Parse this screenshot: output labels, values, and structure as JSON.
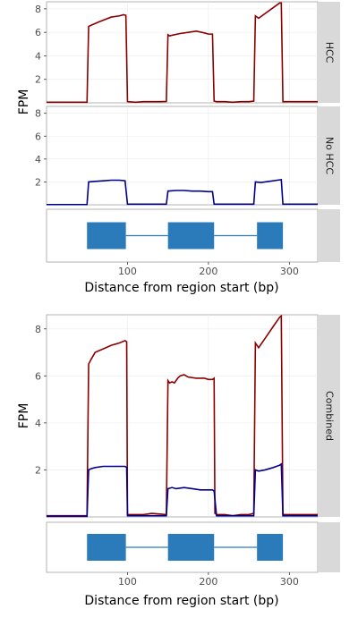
{
  "figure": {
    "top": {
      "ylabel": "FPM",
      "xlabel": "Distance from region start (bp)",
      "strips": [
        "HCC",
        "No HCC"
      ],
      "x_ticks": [
        "100",
        "200",
        "300"
      ],
      "y_ticks": [
        "2",
        "4",
        "6",
        "8"
      ]
    },
    "bottom": {
      "ylabel": "FPM",
      "xlabel": "Distance from region start (bp)",
      "strip": "Combined",
      "x_ticks": [
        "100",
        "200",
        "300"
      ],
      "y_ticks": [
        "2",
        "4",
        "6",
        "8"
      ]
    }
  },
  "colors": {
    "hcc": "#8b0000",
    "no_hcc": "#00008b",
    "exon": "#2b7bba",
    "strip_bg": "#d9d9d9",
    "panel_border": "#b3b3b3"
  },
  "chart_data": [
    {
      "panel": "HCC",
      "type": "line",
      "xlim": [
        0,
        335
      ],
      "ylim": [
        0,
        8.6
      ],
      "series": [
        {
          "name": "HCC",
          "color": "#8b0000",
          "x": [
            0,
            50,
            52,
            55,
            65,
            80,
            90,
            95,
            98,
            100,
            110,
            120,
            130,
            140,
            148,
            150,
            152,
            155,
            165,
            175,
            185,
            195,
            200,
            205,
            207,
            210,
            220,
            230,
            240,
            250,
            256,
            258,
            262,
            270,
            280,
            288,
            290,
            292,
            300,
            320,
            335
          ],
          "y": [
            0.05,
            0.05,
            6.5,
            6.6,
            6.9,
            7.3,
            7.4,
            7.5,
            7.45,
            0.1,
            0.05,
            0.1,
            0.1,
            0.1,
            0.12,
            5.8,
            5.7,
            5.75,
            5.9,
            6.0,
            6.1,
            5.95,
            5.85,
            5.85,
            0.15,
            0.1,
            0.1,
            0.05,
            0.1,
            0.1,
            0.15,
            7.4,
            7.2,
            7.6,
            8.1,
            8.5,
            8.5,
            0.1,
            0.1,
            0.1,
            0.1
          ]
        }
      ]
    },
    {
      "panel": "No HCC",
      "type": "line",
      "xlim": [
        0,
        335
      ],
      "ylim": [
        0,
        8.6
      ],
      "series": [
        {
          "name": "No HCC",
          "color": "#00008b",
          "x": [
            0,
            50,
            52,
            60,
            70,
            80,
            90,
            97,
            100,
            110,
            120,
            130,
            140,
            148,
            150,
            160,
            170,
            180,
            190,
            200,
            205,
            207,
            210,
            220,
            230,
            240,
            250,
            256,
            258,
            265,
            275,
            285,
            290,
            292,
            300,
            320,
            335
          ],
          "y": [
            0.02,
            0.02,
            2.0,
            2.05,
            2.1,
            2.15,
            2.15,
            2.1,
            0.05,
            0.05,
            0.05,
            0.05,
            0.05,
            0.05,
            1.2,
            1.25,
            1.25,
            1.2,
            1.2,
            1.15,
            1.15,
            0.05,
            0.05,
            0.05,
            0.05,
            0.05,
            0.05,
            0.05,
            2.0,
            1.95,
            2.05,
            2.15,
            2.2,
            0.05,
            0.05,
            0.05,
            0.05
          ]
        }
      ]
    },
    {
      "panel": "Combined",
      "type": "line",
      "xlim": [
        0,
        335
      ],
      "ylim": [
        0,
        8.6
      ],
      "series": [
        {
          "name": "HCC",
          "color": "#8b0000",
          "x": [
            0,
            50,
            52,
            55,
            60,
            70,
            80,
            90,
            97,
            99,
            100,
            110,
            120,
            130,
            140,
            148,
            150,
            152,
            155,
            158,
            162,
            165,
            170,
            175,
            185,
            195,
            200,
            205,
            207,
            208,
            210,
            220,
            230,
            240,
            250,
            256,
            258,
            262,
            270,
            280,
            288,
            290,
            292,
            300,
            320,
            335
          ],
          "y": [
            0.05,
            0.05,
            6.5,
            6.7,
            7.0,
            7.15,
            7.3,
            7.4,
            7.5,
            7.45,
            0.1,
            0.1,
            0.1,
            0.15,
            0.12,
            0.1,
            5.8,
            5.7,
            5.75,
            5.7,
            5.9,
            6.0,
            6.05,
            5.95,
            5.9,
            5.9,
            5.85,
            5.85,
            5.9,
            0.15,
            0.1,
            0.1,
            0.05,
            0.1,
            0.1,
            0.15,
            7.4,
            7.2,
            7.6,
            8.1,
            8.5,
            8.55,
            0.1,
            0.1,
            0.1,
            0.1
          ]
        },
        {
          "name": "No HCC",
          "color": "#00008b",
          "x": [
            0,
            50,
            52,
            55,
            60,
            70,
            80,
            90,
            97,
            99,
            100,
            110,
            120,
            130,
            140,
            148,
            150,
            155,
            160,
            170,
            180,
            190,
            200,
            205,
            207,
            210,
            220,
            230,
            240,
            250,
            256,
            258,
            262,
            270,
            280,
            288,
            290,
            292,
            300,
            320,
            335
          ],
          "y": [
            0.02,
            0.02,
            2.0,
            2.05,
            2.1,
            2.15,
            2.15,
            2.15,
            2.15,
            2.1,
            0.05,
            0.05,
            0.05,
            0.05,
            0.05,
            0.05,
            1.2,
            1.25,
            1.2,
            1.25,
            1.2,
            1.15,
            1.15,
            1.15,
            1.1,
            0.05,
            0.05,
            0.05,
            0.05,
            0.05,
            0.05,
            2.0,
            1.95,
            2.0,
            2.1,
            2.2,
            2.25,
            0.05,
            0.05,
            0.05,
            0.05
          ]
        }
      ]
    },
    {
      "panel": "gene-model",
      "type": "bar",
      "xlim": [
        0,
        335
      ],
      "exons": [
        [
          50,
          98
        ],
        [
          150,
          207
        ],
        [
          260,
          292
        ]
      ]
    }
  ]
}
